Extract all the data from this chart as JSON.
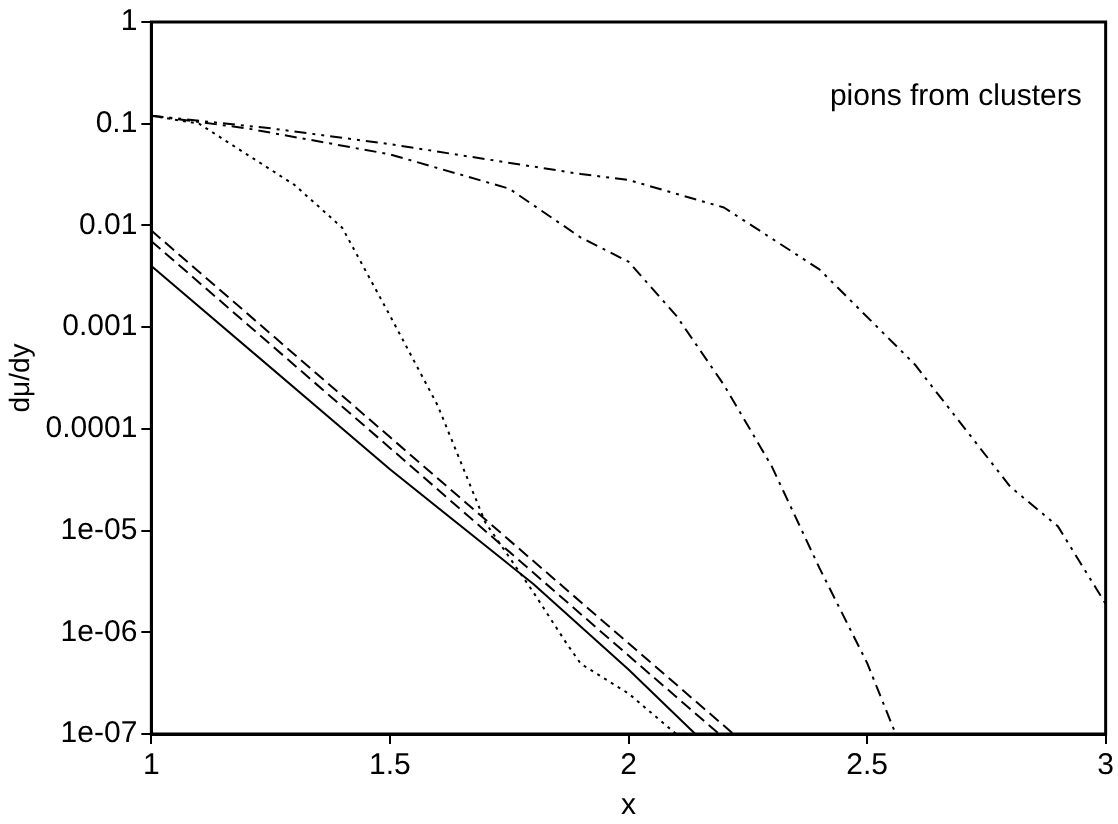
{
  "chart_data": {
    "type": "line",
    "xlabel": "x",
    "ylabel": "dμ/dy",
    "annotations": [
      "pions from clusters"
    ],
    "log": "y",
    "grid": false,
    "legend": false,
    "marker": "none",
    "xlim": [
      1,
      3
    ],
    "xticks": [
      1,
      1.5,
      2,
      2.5,
      3
    ],
    "ylim": [
      1e-07,
      1
    ],
    "yticks": [
      1,
      0.1,
      0.01,
      0.001,
      0.0001,
      {
        "value": 1e-05,
        "label": "1e-05"
      },
      {
        "value": 1e-06,
        "label": "1e-06"
      },
      {
        "value": 1e-07,
        "label": "1e-07"
      }
    ],
    "series": [
      {
        "color": "#000000",
        "line_style": "solid",
        "x": [
          1,
          1.5,
          1.8,
          2,
          2.14
        ],
        "values": [
          0.004,
          4e-05,
          3e-06,
          4.3e-07,
          1e-07
        ]
      },
      {
        "color": "#000000",
        "line_style": "dashed",
        "x": [
          1,
          1.5,
          2,
          2.22
        ],
        "values": [
          0.0089,
          8.3e-05,
          7.8e-07,
          1e-07
        ]
      },
      {
        "color": "#000000",
        "line_style": "dashed",
        "x": [
          1,
          1.5,
          2,
          2.19
        ],
        "values": [
          0.007,
          6.5e-05,
          5.9e-07,
          1e-07
        ]
      },
      {
        "color": "#000000",
        "line_style": "dotted",
        "x": [
          1,
          1.1,
          1.2,
          1.3,
          1.4,
          1.5,
          1.6,
          1.7,
          1.8,
          1.87,
          1.9,
          2,
          2.1
        ],
        "values": [
          0.12,
          0.1,
          0.05,
          0.025,
          0.0095,
          0.0013,
          0.00017,
          1.2e-05,
          2.5e-06,
          7.8e-07,
          4.9e-07,
          2.5e-07,
          1e-07
        ]
      },
      {
        "color": "#000000",
        "line_style": "dashdot",
        "x": [
          1,
          1.2,
          1.5,
          1.75,
          1.9,
          2,
          2.1,
          2.2,
          2.3,
          2.4,
          2.5,
          2.56
        ],
        "values": [
          0.12,
          0.09,
          0.05,
          0.023,
          0.0076,
          0.0044,
          0.0013,
          0.00027,
          4.3e-05,
          4.3e-06,
          5e-07,
          1e-07
        ]
      },
      {
        "color": "#000000",
        "line_style": "dashdotdot",
        "x": [
          1,
          1.25,
          1.5,
          1.9,
          2,
          2.2,
          2.4,
          2.6,
          2.8,
          2.9,
          3
        ],
        "values": [
          0.12,
          0.09,
          0.063,
          0.032,
          0.028,
          0.015,
          0.0037,
          0.00043,
          2.7e-05,
          1.1e-05,
          1.9e-06
        ]
      }
    ]
  }
}
